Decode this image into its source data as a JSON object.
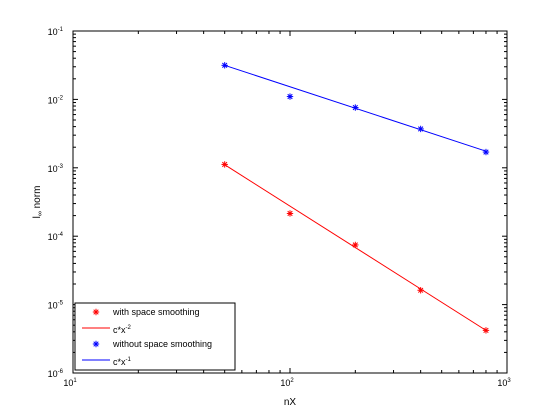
{
  "chart_data": {
    "type": "scatter",
    "xlabel": "nX",
    "ylabel_main": "l",
    "ylabel_sub": "∞",
    "ylabel_rest": " norm",
    "xscale": "log",
    "yscale": "log",
    "xlim": [
      10,
      1000
    ],
    "ylim": [
      1e-06,
      0.1
    ],
    "grid": false,
    "legend_position": "bottom-left",
    "x_ticks": [
      {
        "base": "10",
        "exp": "1"
      },
      {
        "base": "10",
        "exp": "2"
      },
      {
        "base": "10",
        "exp": "3"
      }
    ],
    "y_ticks": [
      {
        "base": "10",
        "exp": "-6"
      },
      {
        "base": "10",
        "exp": "-5"
      },
      {
        "base": "10",
        "exp": "-4"
      },
      {
        "base": "10",
        "exp": "-3"
      },
      {
        "base": "10",
        "exp": "-2"
      },
      {
        "base": "10",
        "exp": "-1"
      }
    ],
    "series": [
      {
        "name": "with space smoothing",
        "kind": "markers",
        "marker": "*",
        "color": "#ff0000",
        "x": [
          50,
          100,
          200,
          400,
          800
        ],
        "y": [
          0.00112,
          0.000215,
          7.45e-05,
          1.62e-05,
          4.2e-06
        ]
      },
      {
        "name_parts": {
          "base": "c*x",
          "exp": "-2"
        },
        "kind": "line",
        "color": "#ff0000",
        "x": [
          50,
          800
        ],
        "y": [
          0.00111,
          4.2e-06
        ]
      },
      {
        "name": "without space smoothing",
        "kind": "markers",
        "marker": "*",
        "color": "#0000ff",
        "x": [
          50,
          100,
          200,
          400,
          800
        ],
        "y": [
          0.0315,
          0.011,
          0.0076,
          0.0037,
          0.0017
        ]
      },
      {
        "name_parts": {
          "base": "c*x",
          "exp": "-1"
        },
        "kind": "line",
        "color": "#0000ff",
        "x": [
          50,
          800
        ],
        "y": [
          0.0315,
          0.00175
        ]
      }
    ]
  }
}
